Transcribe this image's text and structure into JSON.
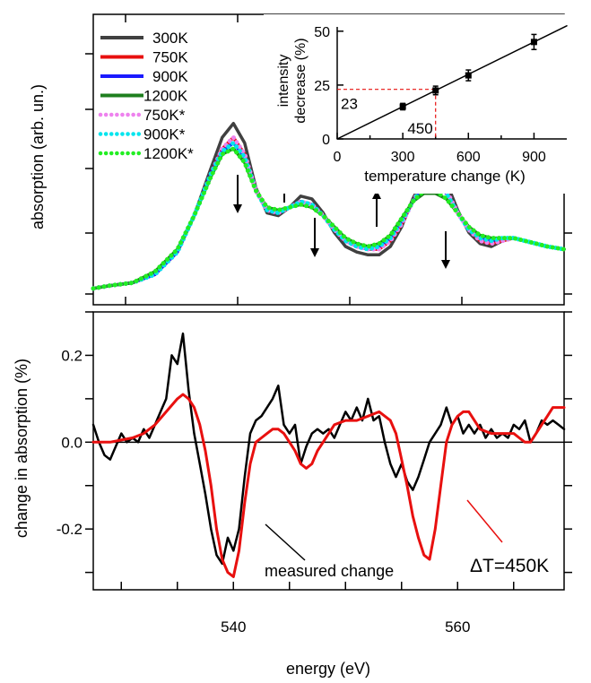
{
  "chart_data": [
    {
      "panel": "top",
      "type": "line",
      "xlabel": "",
      "ylabel": "absorption (arb. un.)",
      "xlim": [
        527.5,
        569.5
      ],
      "ylim": [
        0,
        1.0
      ],
      "legend_position": "top-left",
      "series": [
        {
          "name": "300K",
          "color": "#404040",
          "style": "solid",
          "x": [
            527.5,
            529,
            531,
            533,
            535,
            536.5,
            538,
            539,
            540,
            541,
            542,
            543,
            544,
            545,
            546,
            547,
            548,
            549,
            550,
            551,
            552,
            553,
            554,
            555,
            556,
            557,
            558,
            559,
            560,
            561,
            562,
            563,
            564,
            565,
            566,
            567,
            568,
            569.5
          ],
          "y": [
            0.02,
            0.03,
            0.04,
            0.07,
            0.15,
            0.28,
            0.45,
            0.56,
            0.61,
            0.54,
            0.38,
            0.29,
            0.28,
            0.31,
            0.35,
            0.34,
            0.29,
            0.22,
            0.17,
            0.15,
            0.14,
            0.14,
            0.17,
            0.24,
            0.34,
            0.42,
            0.45,
            0.4,
            0.3,
            0.22,
            0.18,
            0.17,
            0.19,
            0.2,
            0.19,
            0.18,
            0.17,
            0.16
          ]
        },
        {
          "name": "750K",
          "color": "#e8100f",
          "style": "solid",
          "x": [
            527.5,
            529,
            531,
            533,
            535,
            536.5,
            538,
            539,
            540,
            541,
            542,
            543,
            544,
            545,
            546,
            547,
            548,
            549,
            550,
            551,
            552,
            553,
            554,
            555,
            556,
            557,
            558,
            559,
            560,
            561,
            562,
            563,
            564,
            565,
            566,
            567,
            568,
            569.5
          ],
          "y": [
            0.02,
            0.03,
            0.04,
            0.07,
            0.15,
            0.28,
            0.43,
            0.52,
            0.56,
            0.5,
            0.37,
            0.3,
            0.29,
            0.31,
            0.33,
            0.32,
            0.28,
            0.23,
            0.19,
            0.17,
            0.16,
            0.16,
            0.19,
            0.25,
            0.33,
            0.39,
            0.41,
            0.37,
            0.29,
            0.23,
            0.19,
            0.18,
            0.19,
            0.2,
            0.19,
            0.18,
            0.17,
            0.16
          ]
        },
        {
          "name": "900K",
          "color": "#1a1aff",
          "style": "solid",
          "x": [
            527.5,
            529,
            531,
            533,
            535,
            536.5,
            538,
            539,
            540,
            541,
            542,
            543,
            544,
            545,
            546,
            547,
            548,
            549,
            550,
            551,
            552,
            553,
            554,
            555,
            556,
            557,
            558,
            559,
            560,
            561,
            562,
            563,
            564,
            565,
            566,
            567,
            568,
            569.5
          ],
          "y": [
            0.02,
            0.03,
            0.04,
            0.07,
            0.15,
            0.28,
            0.43,
            0.51,
            0.54,
            0.49,
            0.37,
            0.3,
            0.29,
            0.31,
            0.33,
            0.32,
            0.28,
            0.23,
            0.19,
            0.17,
            0.16,
            0.17,
            0.2,
            0.26,
            0.33,
            0.38,
            0.39,
            0.36,
            0.29,
            0.23,
            0.2,
            0.19,
            0.2,
            0.2,
            0.19,
            0.18,
            0.17,
            0.16
          ]
        },
        {
          "name": "1200K",
          "color": "#1f7f1f",
          "style": "solid",
          "x": [
            527.5,
            529,
            531,
            533,
            535,
            536.5,
            538,
            539,
            540,
            541,
            542,
            543,
            544,
            545,
            546,
            547,
            548,
            549,
            550,
            551,
            552,
            553,
            554,
            555,
            556,
            557,
            558,
            559,
            560,
            561,
            562,
            563,
            564,
            565,
            566,
            567,
            568,
            569.5
          ],
          "y": [
            0.02,
            0.03,
            0.04,
            0.08,
            0.16,
            0.28,
            0.42,
            0.5,
            0.52,
            0.47,
            0.37,
            0.31,
            0.3,
            0.31,
            0.32,
            0.31,
            0.28,
            0.24,
            0.2,
            0.18,
            0.17,
            0.18,
            0.21,
            0.27,
            0.33,
            0.36,
            0.36,
            0.34,
            0.29,
            0.24,
            0.21,
            0.2,
            0.2,
            0.2,
            0.19,
            0.18,
            0.17,
            0.16
          ]
        },
        {
          "name": "750K*",
          "color": "#ee82ee",
          "style": "dotted",
          "x": [
            527.5,
            529,
            531,
            533,
            535,
            536.5,
            538,
            539,
            540,
            541,
            542,
            543,
            544,
            545,
            546,
            547,
            548,
            549,
            550,
            551,
            552,
            553,
            554,
            555,
            556,
            557,
            558,
            559,
            560,
            561,
            562,
            563,
            564,
            565,
            566,
            567,
            568,
            569.5
          ],
          "y": [
            0.02,
            0.03,
            0.04,
            0.07,
            0.15,
            0.28,
            0.43,
            0.52,
            0.56,
            0.5,
            0.37,
            0.3,
            0.29,
            0.31,
            0.33,
            0.32,
            0.28,
            0.23,
            0.19,
            0.17,
            0.16,
            0.16,
            0.19,
            0.25,
            0.33,
            0.4,
            0.42,
            0.37,
            0.29,
            0.23,
            0.19,
            0.18,
            0.19,
            0.2,
            0.19,
            0.18,
            0.17,
            0.16
          ]
        },
        {
          "name": "900K*",
          "color": "#00e5ee",
          "style": "dotted",
          "x": [
            527.5,
            529,
            531,
            533,
            535,
            536.5,
            538,
            539,
            540,
            541,
            542,
            543,
            544,
            545,
            546,
            547,
            548,
            549,
            550,
            551,
            552,
            553,
            554,
            555,
            556,
            557,
            558,
            559,
            560,
            561,
            562,
            563,
            564,
            565,
            566,
            567,
            568,
            569.5
          ],
          "y": [
            0.02,
            0.03,
            0.04,
            0.07,
            0.15,
            0.28,
            0.43,
            0.51,
            0.54,
            0.49,
            0.37,
            0.3,
            0.29,
            0.31,
            0.33,
            0.32,
            0.28,
            0.23,
            0.19,
            0.17,
            0.16,
            0.17,
            0.2,
            0.26,
            0.33,
            0.39,
            0.4,
            0.36,
            0.29,
            0.23,
            0.2,
            0.19,
            0.2,
            0.2,
            0.19,
            0.18,
            0.17,
            0.16
          ]
        },
        {
          "name": "1200K*",
          "color": "#22ee22",
          "style": "dotted",
          "x": [
            527.5,
            529,
            531,
            533,
            535,
            536.5,
            538,
            539,
            540,
            541,
            542,
            543,
            544,
            545,
            546,
            547,
            548,
            549,
            550,
            551,
            552,
            553,
            554,
            555,
            556,
            557,
            558,
            559,
            560,
            561,
            562,
            563,
            564,
            565,
            566,
            567,
            568,
            569.5
          ],
          "y": [
            0.02,
            0.03,
            0.04,
            0.08,
            0.16,
            0.28,
            0.42,
            0.5,
            0.52,
            0.47,
            0.37,
            0.31,
            0.3,
            0.31,
            0.32,
            0.31,
            0.28,
            0.24,
            0.2,
            0.18,
            0.17,
            0.18,
            0.21,
            0.27,
            0.33,
            0.37,
            0.37,
            0.34,
            0.29,
            0.24,
            0.21,
            0.2,
            0.2,
            0.2,
            0.19,
            0.18,
            0.17,
            0.16
          ]
        }
      ],
      "arrows": [
        {
          "x": 540,
          "direction": "down"
        },
        {
          "x": 542.5,
          "direction": "up"
        },
        {
          "x": 546.5,
          "direction": "down"
        },
        {
          "x": 552.5,
          "direction": "up"
        },
        {
          "x": 558,
          "direction": "down"
        }
      ]
    },
    {
      "panel": "inset",
      "type": "scatter",
      "xlabel": "temperature change (K)",
      "ylabel": "intensity decrease (%)",
      "ylabel_lines": [
        "intensity",
        "decrease (%)"
      ],
      "xlim": [
        0,
        1050
      ],
      "ylim": [
        0,
        52
      ],
      "xticks": [
        "0",
        "300",
        "600",
        "900"
      ],
      "yticks": [
        "0",
        "25",
        "50"
      ],
      "points": [
        {
          "x": 300,
          "y": 15,
          "err": 1.5
        },
        {
          "x": 450,
          "y": 22.5,
          "err": 2
        },
        {
          "x": 600,
          "y": 29.5,
          "err": 2.5
        },
        {
          "x": 900,
          "y": 45,
          "err": 3.5
        }
      ],
      "fit_line": {
        "x": [
          0,
          1050
        ],
        "y": [
          0,
          52.5
        ]
      },
      "guide": {
        "x": 450,
        "y": 23,
        "x_label": "450",
        "y_label": "23",
        "color": "#e8100f"
      }
    },
    {
      "panel": "bottom",
      "type": "line",
      "xlabel": "energy (eV)",
      "ylabel": "change in absorption (%)",
      "xlim": [
        527.5,
        569.5
      ],
      "ylim": [
        -0.34,
        0.3
      ],
      "xticks": [
        "540",
        "560"
      ],
      "yticks": [
        "0.2",
        "0.0",
        "-0.2"
      ],
      "series": [
        {
          "name": "measured change",
          "color": "#000000",
          "x": [
            527.5,
            528,
            528.5,
            529,
            529.5,
            530,
            530.5,
            531,
            531.5,
            532,
            532.5,
            533,
            533.5,
            534,
            534.5,
            535,
            535.5,
            536,
            536.5,
            537,
            537.5,
            538,
            538.5,
            539,
            539.5,
            540,
            540.5,
            541,
            541.5,
            542,
            542.5,
            543,
            543.5,
            544,
            544.5,
            545,
            545.5,
            546,
            546.5,
            547,
            547.5,
            548,
            548.5,
            549,
            549.5,
            550,
            550.5,
            551,
            551.5,
            552,
            552.5,
            553,
            553.5,
            554,
            554.5,
            555,
            555.5,
            556,
            556.5,
            557,
            557.5,
            558,
            558.5,
            559,
            559.5,
            560,
            560.5,
            561,
            561.5,
            562,
            562.5,
            563,
            563.5,
            564,
            564.5,
            565,
            565.5,
            566,
            566.5,
            567,
            567.5,
            568,
            568.5,
            569,
            569.5
          ],
          "y": [
            0.04,
            0.0,
            -0.03,
            -0.04,
            -0.01,
            0.02,
            0.0,
            0.01,
            0.0,
            0.03,
            0.01,
            0.04,
            0.07,
            0.1,
            0.2,
            0.18,
            0.25,
            0.12,
            0.02,
            -0.05,
            -0.12,
            -0.2,
            -0.26,
            -0.28,
            -0.22,
            -0.25,
            -0.2,
            -0.08,
            0.02,
            0.05,
            0.06,
            0.08,
            0.1,
            0.13,
            0.04,
            0.02,
            0.04,
            -0.05,
            -0.01,
            0.02,
            0.03,
            0.02,
            0.03,
            0.01,
            0.04,
            0.07,
            0.05,
            0.08,
            0.05,
            0.1,
            0.05,
            0.06,
            0.0,
            -0.05,
            -0.08,
            -0.05,
            -0.09,
            -0.11,
            -0.08,
            -0.04,
            0.0,
            0.02,
            0.04,
            0.08,
            0.04,
            0.06,
            0.02,
            0.04,
            0.02,
            0.04,
            0.01,
            0.03,
            0.01,
            0.02,
            0.01,
            0.04,
            0.03,
            0.05,
            0.0,
            0.02,
            0.05,
            0.04,
            0.05,
            0.04,
            0.03
          ]
        },
        {
          "name": "ΔT=450K",
          "color": "#e8100f",
          "x": [
            527.5,
            529,
            530,
            531,
            532,
            533,
            534,
            535,
            535.5,
            536,
            536.5,
            537,
            537.5,
            538,
            538.5,
            539,
            539.5,
            540,
            540.5,
            541,
            541.5,
            542,
            542.5,
            543,
            543.5,
            544,
            544.5,
            545,
            545.5,
            546,
            546.5,
            547,
            547.5,
            548,
            549,
            550,
            551,
            552,
            553,
            554,
            554.5,
            555,
            555.5,
            556,
            556.5,
            557,
            557.5,
            558,
            558.5,
            559,
            559.5,
            560,
            560.5,
            561,
            561.5,
            562,
            563,
            564,
            565,
            565.5,
            566,
            566.5,
            567,
            567.5,
            568,
            568.5,
            569,
            569.5
          ],
          "y": [
            0.0,
            0.0,
            0.005,
            0.01,
            0.02,
            0.04,
            0.07,
            0.1,
            0.11,
            0.1,
            0.08,
            0.04,
            -0.02,
            -0.1,
            -0.2,
            -0.27,
            -0.3,
            -0.31,
            -0.25,
            -0.14,
            -0.05,
            0.0,
            0.01,
            0.02,
            0.03,
            0.03,
            0.02,
            0.0,
            -0.02,
            -0.05,
            -0.06,
            -0.05,
            -0.02,
            0.0,
            0.04,
            0.05,
            0.05,
            0.06,
            0.07,
            0.05,
            0.02,
            -0.04,
            -0.1,
            -0.17,
            -0.22,
            -0.26,
            -0.27,
            -0.2,
            -0.1,
            0.0,
            0.04,
            0.06,
            0.07,
            0.07,
            0.05,
            0.03,
            0.02,
            0.02,
            0.02,
            0.01,
            0.0,
            0.0,
            0.02,
            0.04,
            0.06,
            0.08,
            0.08,
            0.08
          ]
        }
      ],
      "annotations": [
        {
          "text": "measured change",
          "color": "#000000"
        },
        {
          "text": "ΔT=450K",
          "color": "#e8100f"
        }
      ],
      "zero_line": true
    }
  ]
}
